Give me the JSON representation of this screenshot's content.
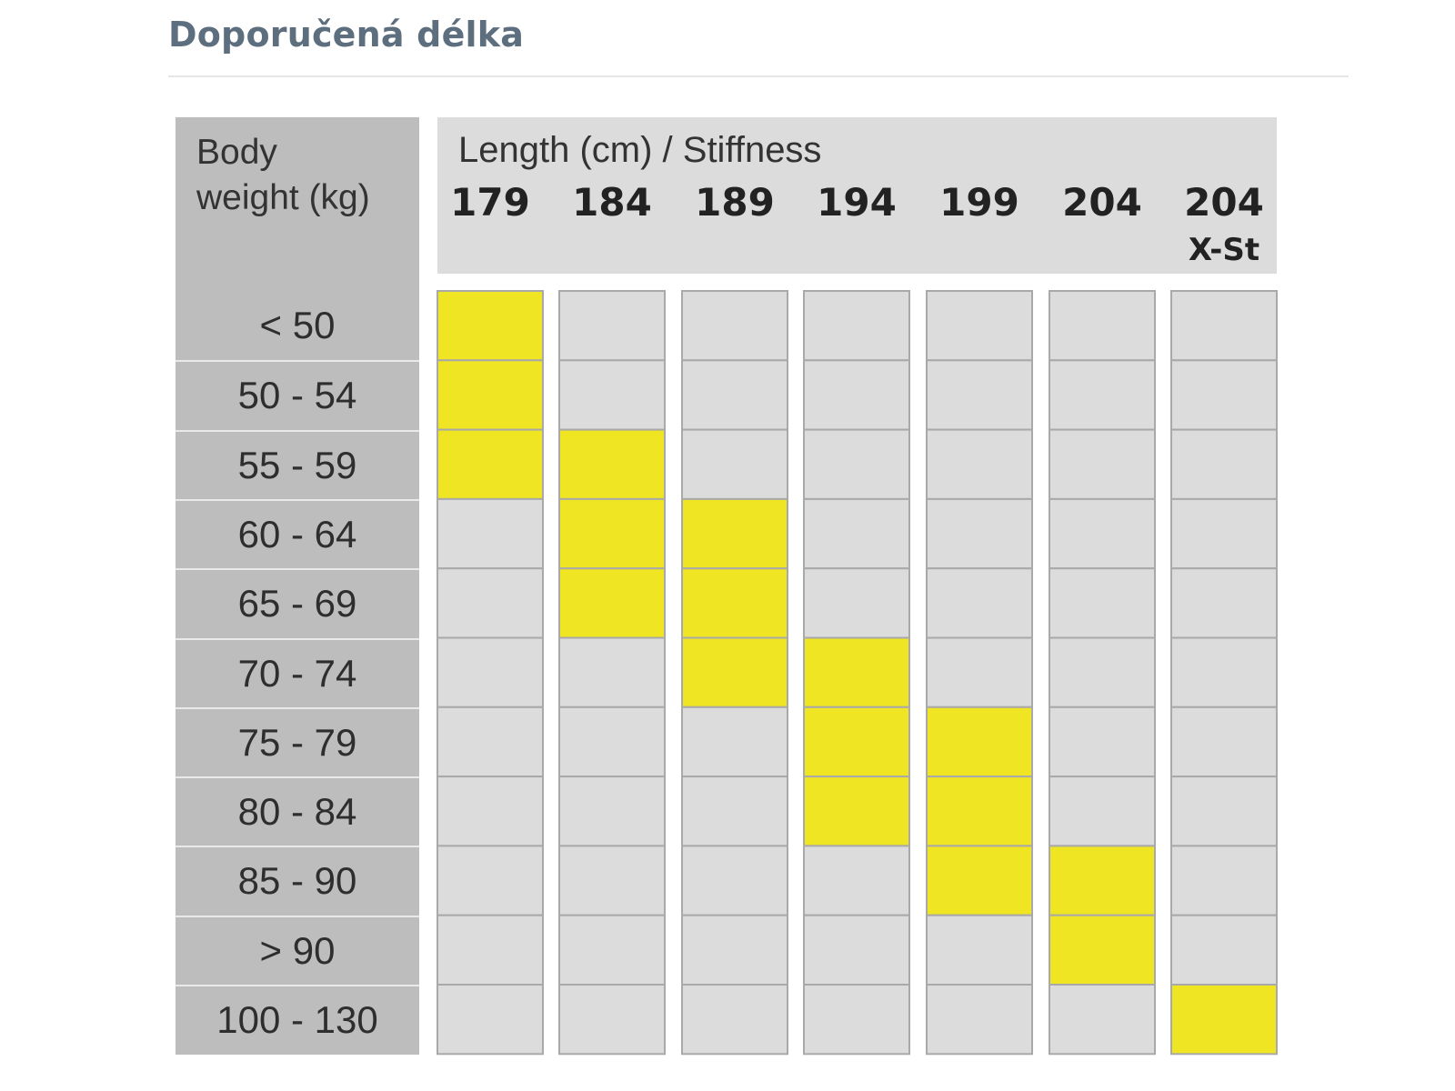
{
  "page": {
    "title": "Doporučená délka"
  },
  "chart_data": {
    "type": "table",
    "row_header_title": [
      "Body",
      "weight (kg)"
    ],
    "column_header_title": "Length (cm) / Stiffness",
    "columns": [
      {
        "length": "179",
        "sub": ""
      },
      {
        "length": "184",
        "sub": ""
      },
      {
        "length": "189",
        "sub": ""
      },
      {
        "length": "194",
        "sub": ""
      },
      {
        "length": "199",
        "sub": ""
      },
      {
        "length": "204",
        "sub": ""
      },
      {
        "length": "204",
        "sub": "X-St"
      }
    ],
    "rows": [
      "< 50",
      "50 - 54",
      "55 - 59",
      "60 - 64",
      "65 - 69",
      "70 - 74",
      "75 - 79",
      "80 - 84",
      "85 - 90",
      "> 90",
      "100 - 130"
    ],
    "recommended": [
      [
        1,
        0,
        0,
        0,
        0,
        0,
        0
      ],
      [
        1,
        0,
        0,
        0,
        0,
        0,
        0
      ],
      [
        1,
        1,
        0,
        0,
        0,
        0,
        0
      ],
      [
        0,
        1,
        1,
        0,
        0,
        0,
        0
      ],
      [
        0,
        1,
        1,
        0,
        0,
        0,
        0
      ],
      [
        0,
        0,
        1,
        1,
        0,
        0,
        0
      ],
      [
        0,
        0,
        0,
        1,
        1,
        0,
        0
      ],
      [
        0,
        0,
        0,
        1,
        1,
        0,
        0
      ],
      [
        0,
        0,
        0,
        0,
        1,
        1,
        0
      ],
      [
        0,
        0,
        0,
        0,
        0,
        1,
        0
      ],
      [
        0,
        0,
        0,
        0,
        0,
        0,
        1
      ]
    ],
    "colors": {
      "recommended": "#efe522",
      "not_recommended": "#dcdcdc",
      "cell_border": "#a9a9a9"
    }
  }
}
